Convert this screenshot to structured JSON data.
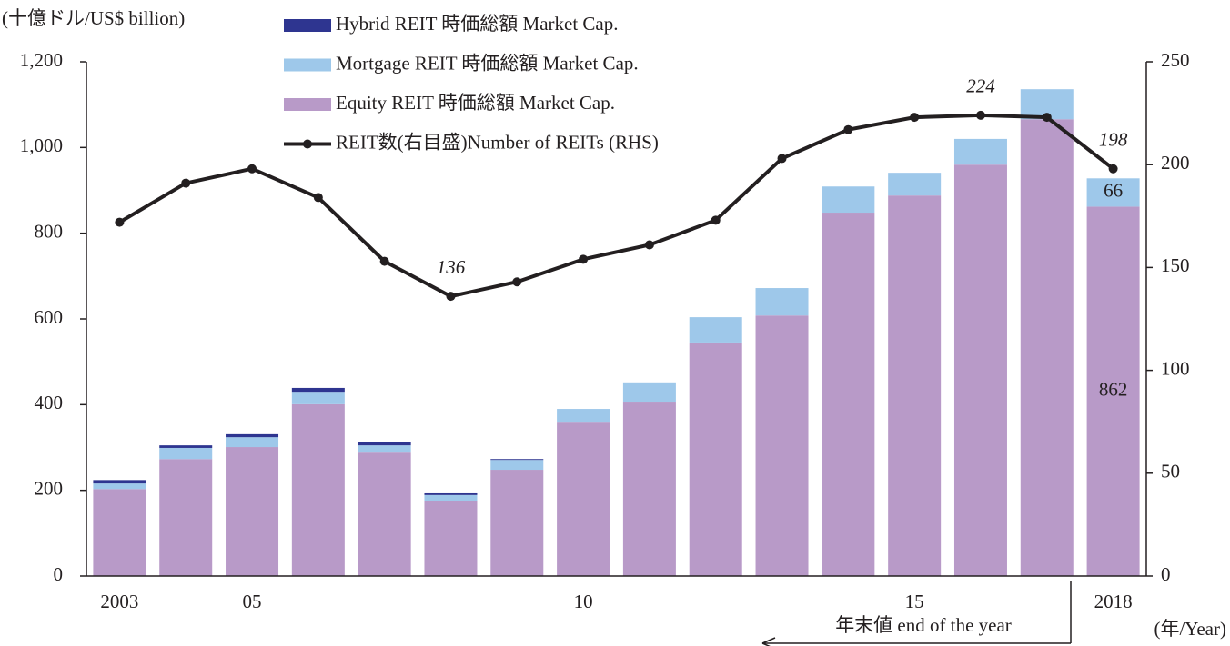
{
  "chart_data": {
    "type": "bar",
    "y_unit_label": "(十億ドル/US$ billion)",
    "x_unit_label": "(年/Year)",
    "annotation": "年末値 end of the year",
    "categories": [
      "2003",
      null,
      "05",
      null,
      null,
      null,
      null,
      "10",
      null,
      null,
      null,
      null,
      "15",
      null,
      null,
      "2018"
    ],
    "series": [
      {
        "name": "Hybrid REIT 時価総額 Market Cap.",
        "type": "bar",
        "color": "#2e3590",
        "values": [
          8,
          6,
          7,
          9,
          7,
          4,
          2,
          0,
          0,
          0,
          0,
          0,
          0,
          0,
          0,
          0
        ]
      },
      {
        "name": "Mortgage REIT 時価総額 Market Cap.",
        "type": "bar",
        "color": "#9ec8ea",
        "values": [
          13,
          26,
          23,
          29,
          17,
          13,
          23,
          32,
          45,
          59,
          64,
          61,
          53,
          60,
          70,
          66
        ],
        "value_labels": [
          null,
          null,
          null,
          null,
          null,
          null,
          null,
          null,
          null,
          null,
          null,
          null,
          null,
          null,
          null,
          "66"
        ]
      },
      {
        "name": "Equity REIT 時価総額 Market Cap.",
        "type": "bar",
        "color": "#b89ac8",
        "values": [
          203,
          273,
          301,
          401,
          288,
          176,
          248,
          358,
          407,
          545,
          608,
          848,
          888,
          960,
          1066,
          862
        ],
        "value_labels": [
          null,
          null,
          null,
          null,
          null,
          null,
          null,
          null,
          null,
          null,
          null,
          null,
          null,
          null,
          null,
          "862"
        ]
      },
      {
        "name": "REIT数(右目盛)Number of REITs (RHS)",
        "type": "line",
        "axis": "y2",
        "color": "#231f20",
        "values": [
          172,
          191,
          198,
          184,
          153,
          136,
          143,
          154,
          161,
          173,
          203,
          217,
          223,
          224,
          223,
          198
        ],
        "value_labels": [
          null,
          null,
          null,
          null,
          null,
          "136",
          null,
          null,
          null,
          null,
          null,
          null,
          null,
          "224",
          null,
          "198"
        ]
      }
    ],
    "ylim": [
      0,
      1200
    ],
    "yticks": [
      0,
      200,
      400,
      600,
      800,
      {
        "value": 1000,
        "label": "1,000"
      },
      {
        "value": 1200,
        "label": "1,200"
      }
    ],
    "y2lim": [
      0,
      250
    ],
    "y2ticks": [
      0,
      50,
      100,
      150,
      200,
      250
    ]
  }
}
